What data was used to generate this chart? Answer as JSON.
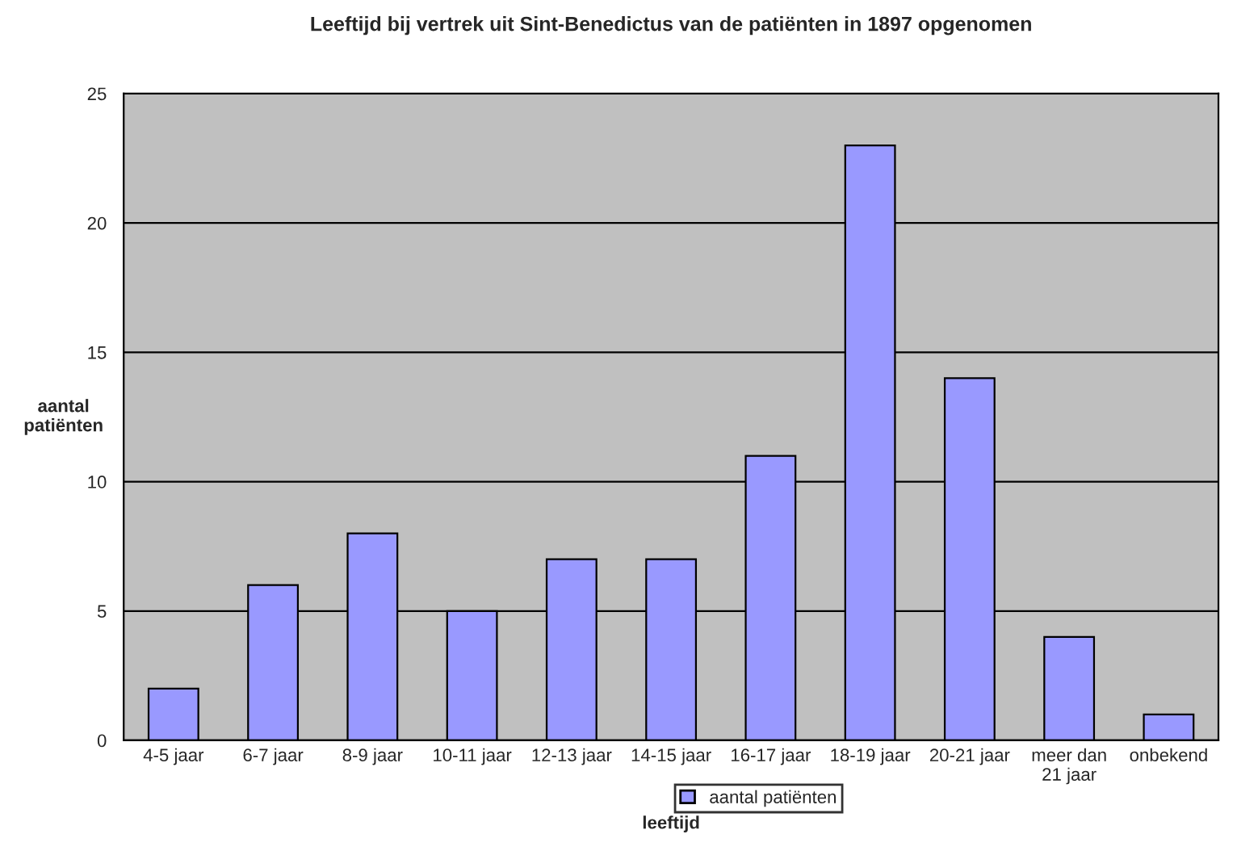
{
  "chart_data": {
    "type": "bar",
    "title": "Leeftijd bij vertrek uit Sint-Benedictus van de patiënten in 1897 opgenomen",
    "xlabel": "leeftijd",
    "ylabel": "aantal patiënten",
    "categories": [
      "4-5 jaar",
      "6-7 jaar",
      "8-9 jaar",
      "10-11 jaar",
      "12-13 jaar",
      "14-15 jaar",
      "16-17 jaar",
      "18-19 jaar",
      "20-21 jaar",
      "meer dan 21 jaar",
      "onbekend"
    ],
    "series": [
      {
        "name": "aantal patiënten",
        "color": "#9999ff",
        "values": [
          2,
          6,
          8,
          5,
          7,
          7,
          11,
          23,
          14,
          4,
          1
        ]
      }
    ],
    "ylim": [
      0,
      25
    ],
    "yticks": [
      0,
      5,
      10,
      15,
      20,
      25
    ],
    "grid": "y",
    "legend": "bottom"
  }
}
